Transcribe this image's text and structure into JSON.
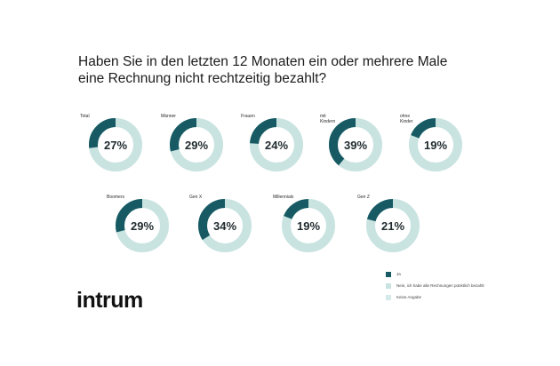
{
  "title_lines": [
    "Haben Sie in den letzten 12 Monaten ein oder mehrere Male",
    "eine Rechnung nicht rechtzeitig bezahlt?"
  ],
  "logo": "intrum",
  "colors": {
    "ja": "#175a63",
    "nein": "#c9e3e1",
    "keine": "#d3eae8"
  },
  "legend": [
    {
      "label": "Ja",
      "color": "#175a63"
    },
    {
      "label": "Nein, ich habe alle Rechnungen pünktlich bezahlt",
      "color": "#c9e3e1"
    },
    {
      "label": "Keine Angabe",
      "color": "#d3eae8"
    }
  ],
  "chart_data": {
    "type": "pie",
    "title": "Haben Sie in den letzten 12 Monaten ein oder mehrere Male eine Rechnung nicht rechtzeitig bezahlt?",
    "series": [
      {
        "name": "Total",
        "label_lines": [
          "Total"
        ],
        "value": 27,
        "display": "27%"
      },
      {
        "name": "Männer",
        "label_lines": [
          "Männer"
        ],
        "value": 29,
        "display": "29%"
      },
      {
        "name": "Frauen",
        "label_lines": [
          "Frauen"
        ],
        "value": 24,
        "display": "24%"
      },
      {
        "name": "mit Kindern",
        "label_lines": [
          "mit",
          "Kindern"
        ],
        "value": 39,
        "display": "39%"
      },
      {
        "name": "ohne Kinder",
        "label_lines": [
          "ohne",
          "Kinder"
        ],
        "value": 19,
        "display": "19%"
      },
      {
        "name": "Boomers",
        "label_lines": [
          "Boomers"
        ],
        "value": 29,
        "display": "29%"
      },
      {
        "name": "Gen X",
        "label_lines": [
          "Gen X"
        ],
        "value": 34,
        "display": "34%"
      },
      {
        "name": "Millennials",
        "label_lines": [
          "Millennials"
        ],
        "value": 19,
        "display": "19%"
      },
      {
        "name": "Gen Z",
        "label_lines": [
          "Gen Z"
        ],
        "value": 21,
        "display": "21%"
      }
    ]
  }
}
